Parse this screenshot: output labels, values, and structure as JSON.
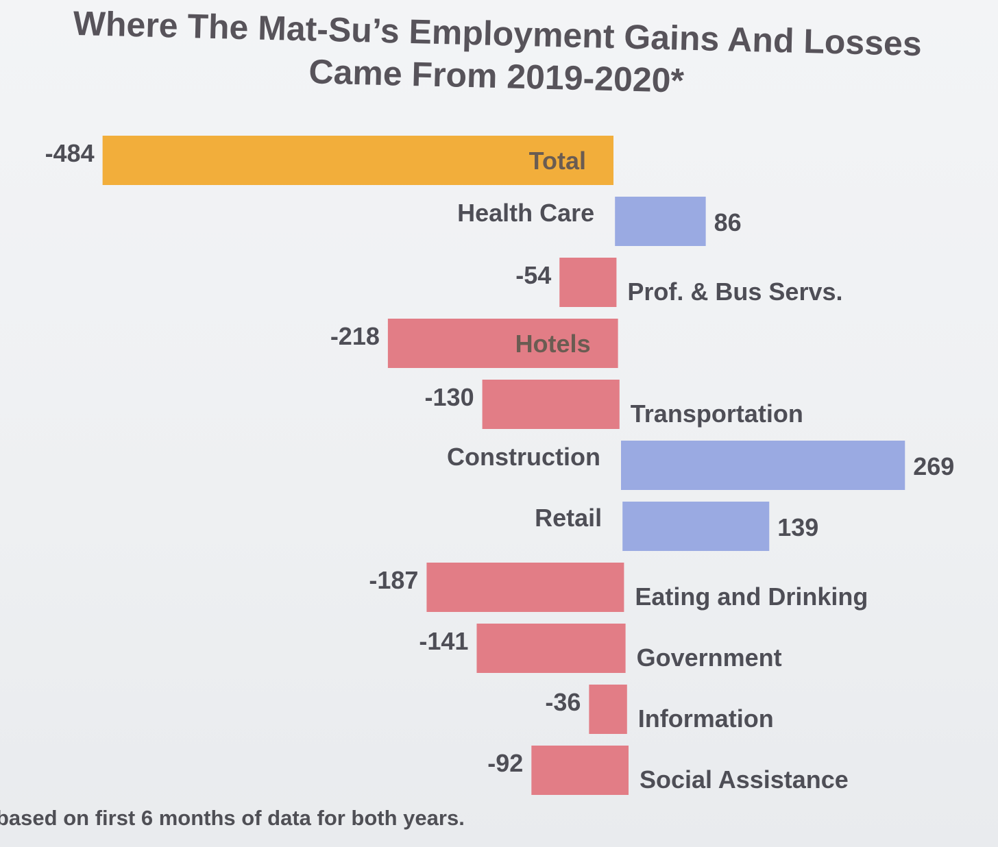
{
  "title": "Where The Mat-Su’s Employment Gains And Losses Came From 2019-2020*",
  "footnote": "based on first 6 months of data for both years.",
  "colors": {
    "total": "#f2ae3b",
    "gain": "#9aaae2",
    "loss": "#e27d86",
    "text": "#4e4e56",
    "inbar_text": "#6a5c52"
  },
  "chart_data": {
    "type": "bar",
    "orientation": "horizontal",
    "categories": [
      "Total",
      "Health Care",
      "Prof. & Bus Servs.",
      "Hotels",
      "Transportation",
      "Construction",
      "Retail",
      "Eating and Drinking",
      "Government",
      "Information",
      "Social Assistance"
    ],
    "values": [
      -484,
      86,
      -54,
      -218,
      -130,
      269,
      139,
      -187,
      -141,
      -36,
      -92
    ],
    "value_labels": [
      "-484",
      "86",
      "-54",
      "-218",
      "-130",
      "269",
      "139",
      "-187",
      "-141",
      "-36",
      "-92"
    ],
    "xlim": [
      -500,
      300
    ],
    "grid": false,
    "legend": "none"
  }
}
